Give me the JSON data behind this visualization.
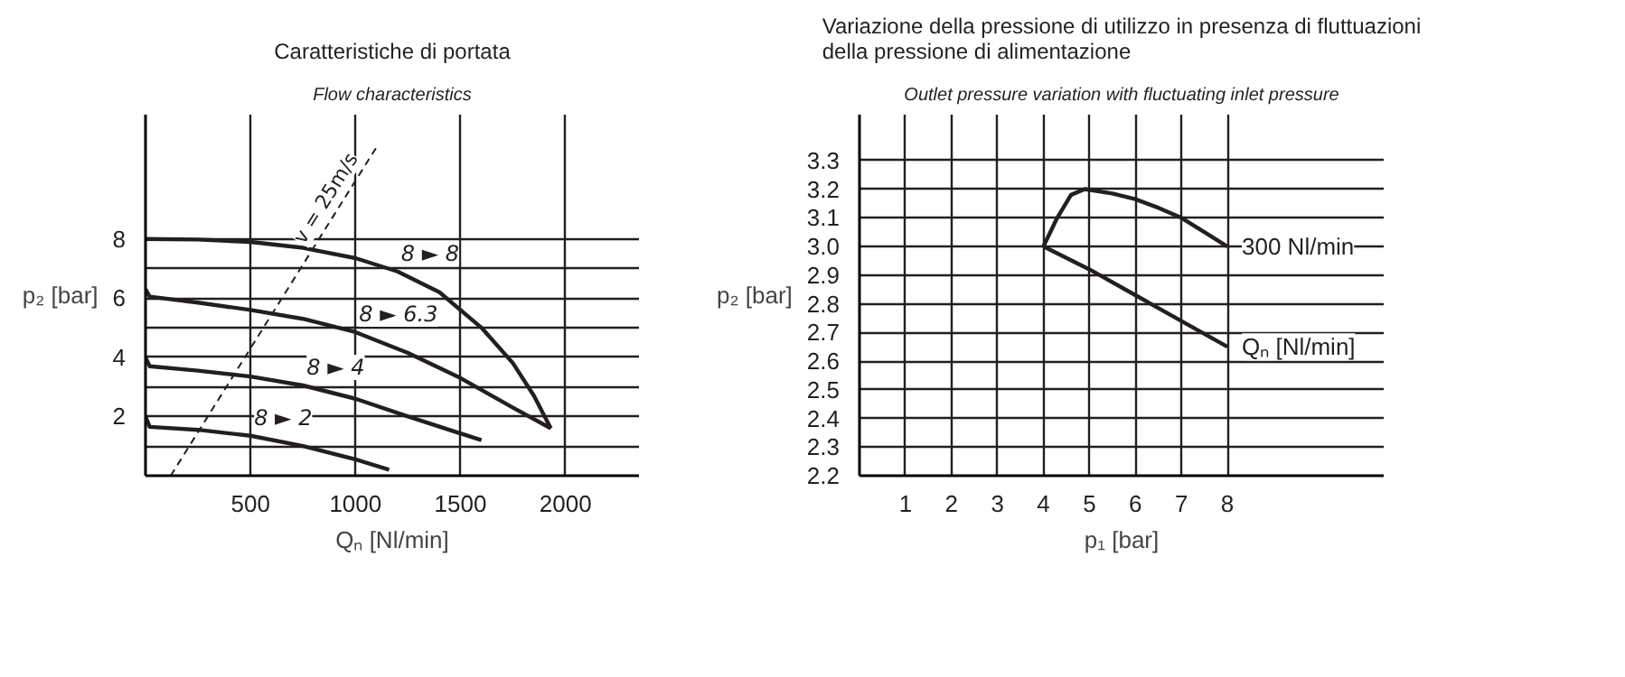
{
  "chart_data": [
    {
      "type": "line",
      "title": "Caratteristiche di portata",
      "subtitle": "Flow characteristics",
      "xlabel": "Qₙ [Nl/min]",
      "ylabel": "p₂ [bar]",
      "xlim": [
        0,
        2350
      ],
      "ylim": [
        0,
        12.2
      ],
      "xticks": [
        500,
        1000,
        1500,
        2000
      ],
      "yticks": [
        {
          "value": 1,
          "label": null
        },
        2,
        {
          "value": 3,
          "label": null
        },
        4,
        {
          "value": 5,
          "label": null
        },
        6,
        {
          "value": 7,
          "label": null
        },
        8
      ],
      "grid": true,
      "line_style": "solid",
      "series": [
        {
          "name": "8 ► 8",
          "color": "#231f20",
          "x": [
            0,
            250,
            500,
            750,
            1000,
            1200,
            1400,
            1600,
            1750,
            1850,
            1930
          ],
          "values": [
            8,
            7.98,
            7.9,
            7.7,
            7.35,
            6.9,
            6.2,
            5.0,
            3.8,
            2.7,
            1.6
          ]
        },
        {
          "name": "8 ► 6.3",
          "color": "#231f20",
          "x": [
            0,
            20,
            250,
            500,
            750,
            1000,
            1250,
            1500,
            1750,
            1930
          ],
          "values": [
            6.3,
            6.05,
            5.85,
            5.6,
            5.3,
            4.85,
            4.15,
            3.3,
            2.3,
            1.6
          ]
        },
        {
          "name": "8 ► 4",
          "color": "#231f20",
          "x": [
            0,
            20,
            250,
            500,
            750,
            1000,
            1250,
            1600
          ],
          "values": [
            4,
            3.7,
            3.55,
            3.35,
            3.05,
            2.6,
            2.0,
            1.2
          ]
        },
        {
          "name": "8 ► 2",
          "color": "#231f20",
          "x": [
            0,
            20,
            250,
            500,
            750,
            1000,
            1160
          ],
          "values": [
            2,
            1.65,
            1.55,
            1.35,
            1.0,
            0.55,
            0.2
          ]
        },
        {
          "name": "v = 25m/s",
          "color": "#231f20",
          "line_style": "dashed",
          "x": [
            120,
            1100
          ],
          "values": [
            0,
            11.1
          ]
        }
      ]
    },
    {
      "type": "line",
      "title": "Variazione della pressione di utilizzo in presenza di fluttuazioni della pressione di alimentazione",
      "subtitle": "Outlet pressure variation with fluctuating inlet pressure",
      "xlabel": "p₁ [bar]",
      "ylabel": "p₂ [bar]",
      "xlim": [
        0,
        11.4
      ],
      "ylim": [
        2.2,
        3.46
      ],
      "xticks": [
        1,
        2,
        3,
        4,
        5,
        6,
        7,
        8
      ],
      "yticks": [
        {
          "value": 2.2,
          "label": "2.2"
        },
        2.3,
        2.4,
        2.5,
        2.6,
        2.7,
        2.8,
        2.9,
        {
          "value": 3.0,
          "label": "3.0"
        },
        3.1,
        3.2,
        3.3
      ],
      "grid": true,
      "line_style": "solid",
      "series": [
        {
          "name": "300 Nl/min",
          "color": "#231f20",
          "x": [
            4,
            4.3,
            4.6,
            4.9,
            5.5,
            6,
            6.5,
            7,
            7.5,
            8
          ],
          "values": [
            3.0,
            3.1,
            3.18,
            3.2,
            3.185,
            3.165,
            3.135,
            3.1,
            3.05,
            3.0
          ]
        },
        {
          "name": "Qₙ [Nl/min]",
          "color": "#231f20",
          "x": [
            4,
            5,
            6,
            7,
            8
          ],
          "values": [
            3.0,
            2.92,
            2.83,
            2.74,
            2.65
          ]
        }
      ]
    }
  ]
}
